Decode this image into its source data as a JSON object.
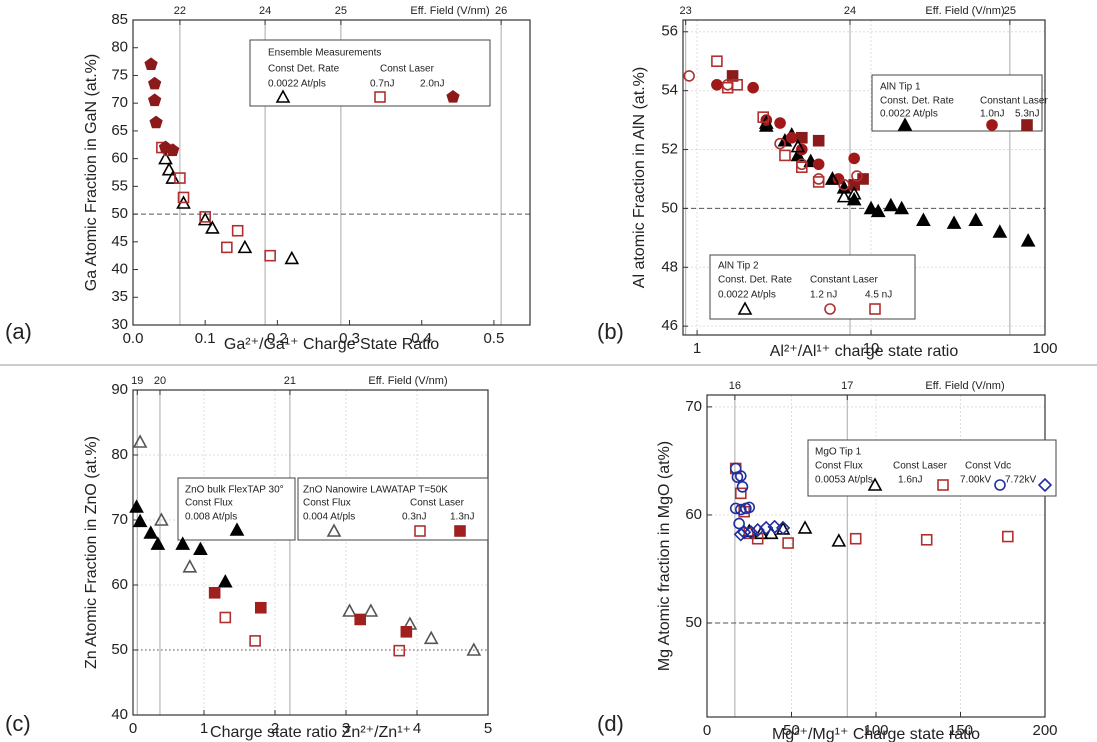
{
  "chart_data": [
    {
      "type": "scatter",
      "panel_label": "(a)",
      "x_label": "Ga²⁺/Ga¹⁺ Charge State Ratio",
      "y_label": "Ga Atomic Fraction in GaN (at.%)",
      "xlim": [
        0,
        0.55
      ],
      "ylim": [
        30,
        85
      ],
      "xticks": [
        {
          "value": 0,
          "label": "0.0"
        },
        0.1,
        0.2,
        0.3,
        0.4,
        0.5
      ],
      "yticks": [
        30,
        35,
        40,
        45,
        50,
        55,
        60,
        65,
        70,
        75,
        80,
        85
      ],
      "grid": false,
      "reference_line": {
        "value": 50,
        "style": "dashed"
      },
      "eff_field": {
        "label": "Eff. Field (V/nm)",
        "ticks": [
          {
            "field": 22,
            "ratio": 0.065
          },
          {
            "field": 24,
            "ratio": 0.183
          },
          {
            "field": 25,
            "ratio": 0.288
          },
          {
            "field": 26,
            "ratio": 0.51
          }
        ]
      },
      "groups": [
        {
          "title": "Ensemble Measurements",
          "headers": [
            "Const Det. Rate",
            "Const Laser"
          ],
          "series": [
            {
              "name": "0.0022 At/pls",
              "color": "#000000",
              "marker": "triangle",
              "filled": false,
              "x": [
                0.045,
                0.05,
                0.055,
                0.07,
                0.1,
                0.11,
                0.155,
                0.22
              ],
              "values": [
                60,
                58,
                56.5,
                52,
                49,
                47.5,
                44,
                42
              ]
            },
            {
              "name": "0.7nJ",
              "color": "#b03030",
              "marker": "square",
              "filled": false,
              "x": [
                0.04,
                0.05,
                0.065,
                0.07,
                0.1,
                0.145,
                0.13,
                0.19
              ],
              "values": [
                62,
                61.5,
                56.5,
                53,
                49.5,
                47,
                44,
                42.5
              ]
            },
            {
              "name": "2.0nJ",
              "color": "#8b1a1a",
              "marker": "pentagon",
              "filled": true,
              "x": [
                0.025,
                0.03,
                0.03,
                0.032,
                0.045,
                0.055
              ],
              "values": [
                77,
                73.5,
                70.5,
                66.5,
                62,
                61.5
              ]
            }
          ]
        }
      ]
    },
    {
      "type": "scatter",
      "panel_label": "(b)",
      "x_label": "Al²⁺/Al¹⁺ charge state ratio",
      "y_label": "Al atomic Fraction in AlN (at.%)",
      "xlim": [
        0.83,
        100
      ],
      "ylim": [
        45.7,
        56.4
      ],
      "log_x": true,
      "xticks": [
        1,
        10,
        100
      ],
      "yticks": [
        46,
        48,
        50,
        52,
        54,
        56
      ],
      "grid": true,
      "reference_line": {
        "value": 50,
        "style": "dashed"
      },
      "eff_field": {
        "label": "Eff. Field (V/nm)",
        "ticks": [
          {
            "field": 23,
            "ratio": 0.86
          },
          {
            "field": 24,
            "ratio": 7.57
          },
          {
            "field": 25,
            "ratio": 62.8
          }
        ]
      },
      "groups": [
        {
          "title": "AlN Tip 1",
          "headers": [
            "Const. Det. Rate",
            "Constant Laser"
          ],
          "series": [
            {
              "name": "0.0022 At/pls",
              "color": "#000000",
              "marker": "triangle",
              "filled": true,
              "x": [
                2.5,
                3.2,
                3.5,
                3.8,
                4.5,
                6,
                7,
                8,
                10,
                11,
                13,
                15,
                20,
                30,
                40,
                55,
                80
              ],
              "values": [
                52.8,
                52.3,
                52.5,
                51.8,
                51.6,
                51,
                50.7,
                50.3,
                50,
                49.9,
                50.1,
                50,
                49.6,
                49.5,
                49.6,
                49.2,
                48.9
              ]
            },
            {
              "name": "1.0nJ",
              "color": "#a01818",
              "marker": "circle",
              "filled": true,
              "x": [
                1.3,
                2.1,
                2.5,
                3,
                3.5,
                4,
                5,
                6.5,
                8
              ],
              "values": [
                54.2,
                54.1,
                53,
                52.9,
                52.4,
                52,
                51.5,
                51,
                51.7
              ]
            },
            {
              "name": "5.3nJ",
              "color": "#8b1a1a",
              "marker": "square",
              "filled": true,
              "x": [
                1.6,
                4,
                5,
                8,
                9
              ],
              "values": [
                54.5,
                52.4,
                52.3,
                50.8,
                51
              ]
            }
          ]
        },
        {
          "title": "AlN Tip 2",
          "headers": [
            "Const. Det. Rate",
            "Constant Laser"
          ],
          "series": [
            {
              "name": "0.0022 At/pls",
              "color": "#000000",
              "marker": "triangle",
              "filled": false,
              "x": [
                2.5,
                3.8,
                6,
                7,
                8
              ],
              "values": [
                52.9,
                52.1,
                51,
                50.4,
                50.5
              ]
            },
            {
              "name": "1.2 nJ",
              "color": "#b03030",
              "marker": "circle",
              "filled": false,
              "x": [
                0.9,
                1.5,
                3,
                4,
                5,
                7,
                8.3
              ],
              "values": [
                54.5,
                54.2,
                52.2,
                51.5,
                51,
                50.8,
                51.1
              ]
            },
            {
              "name": "4.5 nJ",
              "color": "#b03030",
              "marker": "square",
              "filled": false,
              "x": [
                1.3,
                1.5,
                1.7,
                2.4,
                3.2,
                4,
                5
              ],
              "values": [
                55,
                54.1,
                54.2,
                53.1,
                51.8,
                51.4,
                50.9
              ]
            }
          ]
        }
      ]
    },
    {
      "type": "scatter",
      "panel_label": "(c)",
      "x_label": "Charge state ratio Zn²⁺/Zn¹⁺",
      "y_label": "Zn Atomic Fraction in ZnO (at.%)",
      "xlim": [
        0,
        5
      ],
      "ylim": [
        40,
        90
      ],
      "xticks": [
        0,
        1,
        2,
        3,
        4,
        5
      ],
      "yticks": [
        40,
        50,
        60,
        70,
        80,
        90
      ],
      "grid": true,
      "reference_line": {
        "value": 50,
        "style": "dotted"
      },
      "eff_field": {
        "label": "Eff. Field (V/nm)",
        "ticks": [
          {
            "field": 19,
            "ratio": 0.06
          },
          {
            "field": 20,
            "ratio": 0.38
          },
          {
            "field": 21,
            "ratio": 2.21
          }
        ]
      },
      "groups": [
        {
          "title": "ZnO bulk FlexTAP 30°",
          "headers": [
            "Const Flux"
          ],
          "series": [
            {
              "name": "0.008 At/pls",
              "color": "#000000",
              "marker": "triangle",
              "filled": true,
              "x": [
                0.05,
                0.1,
                0.25,
                0.35,
                0.7,
                0.95,
                1.3
              ],
              "values": [
                72,
                69.8,
                68,
                66.3,
                66.3,
                65.5,
                60.5
              ]
            }
          ]
        },
        {
          "title": "ZnO Nanowire LAWATAP T=50K",
          "headers": [
            "Const Flux",
            "Const Laser"
          ],
          "series": [
            {
              "name": "0.004 At/pls",
              "color": "#555555",
              "marker": "triangle",
              "filled": false,
              "x": [
                0.1,
                0.4,
                0.8,
                3.05,
                3.35,
                3.9,
                4.2,
                4.8
              ],
              "values": [
                82,
                70,
                62.8,
                56,
                56,
                54,
                51.8,
                50
              ]
            },
            {
              "name": "0.3nJ",
              "color": "#b03030",
              "marker": "square",
              "filled": false,
              "x": [
                1.3,
                1.72,
                3.75
              ],
              "values": [
                55,
                51.4,
                49.9
              ]
            },
            {
              "name": "1.3nJ",
              "color": "#a02020",
              "marker": "crossed-square",
              "filled": true,
              "x": [
                1.15,
                1.8,
                3.2,
                3.85
              ],
              "values": [
                58.8,
                56.5,
                54.7,
                52.8
              ]
            }
          ]
        }
      ]
    },
    {
      "type": "scatter",
      "panel_label": "(d)",
      "x_label": "Mg²⁺/Mg¹⁺ Charge state ratio",
      "y_label": "Mg Atomic fraction in MgO (at%)",
      "xlim": [
        0,
        200
      ],
      "ylim": [
        41.3,
        71.1
      ],
      "xticks": [
        0,
        50,
        100,
        150,
        200
      ],
      "yticks": [
        50,
        60,
        70
      ],
      "grid": true,
      "reference_line": {
        "value": 50,
        "style": "dashed"
      },
      "eff_field": {
        "label": "Eff. Field (V/nm)",
        "ticks": [
          {
            "field": 16,
            "ratio": 16.5
          },
          {
            "field": 17,
            "ratio": 83
          }
        ]
      },
      "groups": [
        {
          "title": "MgO Tip 1",
          "headers": [
            "Const Flux",
            "Const Laser",
            "Const Vdc"
          ],
          "series": [
            {
              "name": "0.0053 At/pls",
              "color": "#000000",
              "marker": "triangle",
              "filled": false,
              "x": [
                25,
                32,
                38,
                45,
                58,
                78
              ],
              "values": [
                58.5,
                58.3,
                58.3,
                58.7,
                58.8,
                57.6
              ]
            },
            {
              "name": "1.6nJ",
              "color": "#b03030",
              "marker": "square",
              "filled": false,
              "x": [
                17,
                20,
                22,
                25,
                30,
                48,
                88,
                130,
                178
              ],
              "values": [
                64.3,
                62,
                60.3,
                58.3,
                57.8,
                57.4,
                57.8,
                57.7,
                58
              ]
            },
            {
              "name": "7.00kV",
              "color": "#1f2f9f",
              "marker": "circle",
              "filled": false,
              "x": [
                17,
                18,
                20,
                21,
                17,
                20,
                23,
                25,
                19
              ],
              "values": [
                64.3,
                63.5,
                63.6,
                62.6,
                60.6,
                60.5,
                60.6,
                60.7,
                59.2
              ]
            },
            {
              "name": "7.72kV",
              "color": "#1f2f9f",
              "marker": "diamond",
              "filled": false,
              "x": [
                20,
                22,
                26,
                30,
                35,
                40,
                45
              ],
              "values": [
                58.2,
                58.4,
                58.4,
                58.6,
                58.8,
                58.9,
                58.8
              ]
            }
          ]
        }
      ]
    }
  ]
}
